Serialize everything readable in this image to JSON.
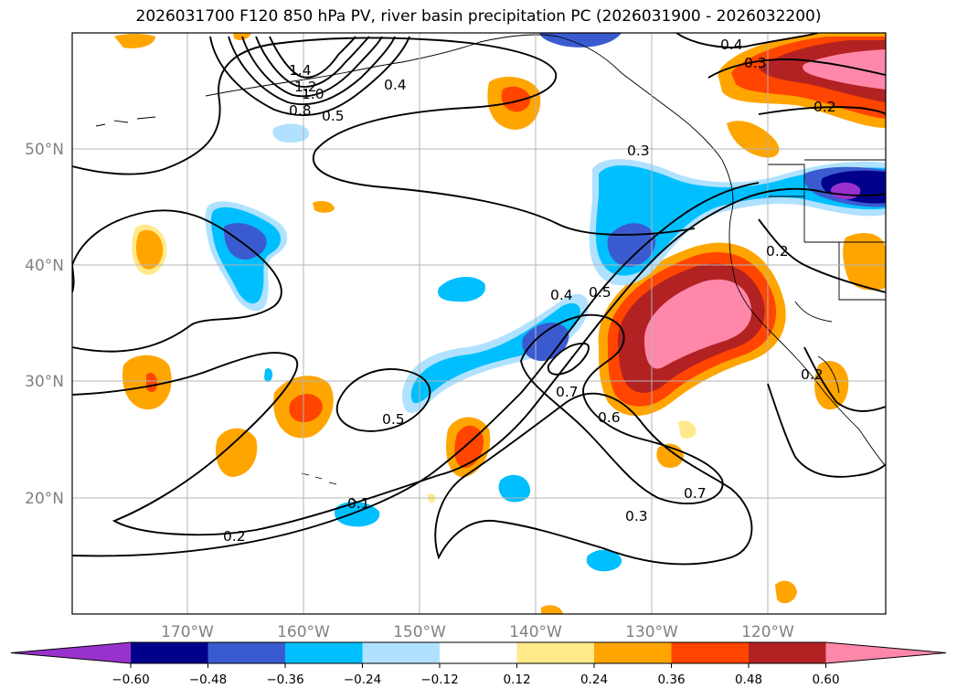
{
  "title": "2026031700 F120 850 hPa PV, river basin precipitation PC (2026031900 - 2026032200)",
  "map": {
    "lon_ticks": [
      "170°W",
      "160°W",
      "150°W",
      "140°W",
      "130°W",
      "120°W"
    ],
    "lat_ticks": [
      "50°N",
      "40°N",
      "30°N",
      "20°N"
    ],
    "contour_labels": [
      "1.4",
      "1.2",
      "1.0",
      "0.8",
      "0.5",
      "0.4",
      "0.4",
      "0.3",
      "0.3",
      "0.2",
      "0.2",
      "0.2",
      "0.4",
      "0.5",
      "0.7",
      "0.6",
      "0.5",
      "0.7",
      "0.3",
      "0.2",
      "0.1"
    ]
  },
  "colorbar": {
    "ticks": [
      "−0.60",
      "−0.48",
      "−0.36",
      "−0.24",
      "−0.12",
      "0.12",
      "0.24",
      "0.36",
      "0.48",
      "0.60"
    ],
    "colors": [
      "#9932cc",
      "#00008b",
      "#3a5bd0",
      "#00bfff",
      "#b0e2ff",
      "#ffffff",
      "#ffe98a",
      "#ffa500",
      "#ff4500",
      "#b22222",
      "#ff88aa"
    ]
  }
}
